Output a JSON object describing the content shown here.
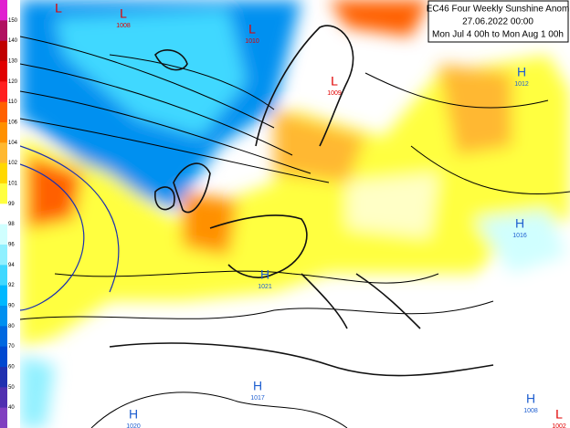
{
  "title": {
    "lines": [
      "EC46 Four Weekly Sunshine Anom",
      "27.06.2022 00:00",
      "Mon Jul 4 00h to Mon Aug 1 00h"
    ]
  },
  "legend": {
    "labels": [
      150,
      140,
      130,
      120,
      110,
      106,
      104,
      102,
      101,
      99,
      98,
      96,
      94,
      92,
      90,
      80,
      70,
      60,
      50,
      40
    ],
    "colors": [
      "#e020d0",
      "#b01060",
      "#c00000",
      "#e00000",
      "#ff2020",
      "#ff6000",
      "#ff9000",
      "#ffb830",
      "#ffd800",
      "#ffff40",
      "#ffffff",
      "#d0ffff",
      "#90f0ff",
      "#40d8ff",
      "#00b8ff",
      "#0090f0",
      "#0068e0",
      "#0048d0",
      "#2030b0",
      "#5030b0",
      "#8040c0"
    ]
  },
  "centers": [
    {
      "symbol": "L"
    },
    {
      "symbol": "L",
      "pressure": "1008"
    },
    {
      "symbol": "L",
      "pressure": "1010"
    },
    {
      "symbol": "L",
      "pressure": "1009"
    },
    {
      "symbol": "H",
      "pressure": "1012"
    },
    {
      "symbol": "H",
      "pressure": "1016"
    },
    {
      "symbol": "H",
      "pressure": "1021"
    },
    {
      "symbol": "H",
      "pressure": "1017"
    },
    {
      "symbol": "H",
      "pressure": "1020"
    },
    {
      "symbol": "H",
      "pressure": "1008"
    },
    {
      "symbol": "L",
      "pressure": "1002"
    }
  ]
}
